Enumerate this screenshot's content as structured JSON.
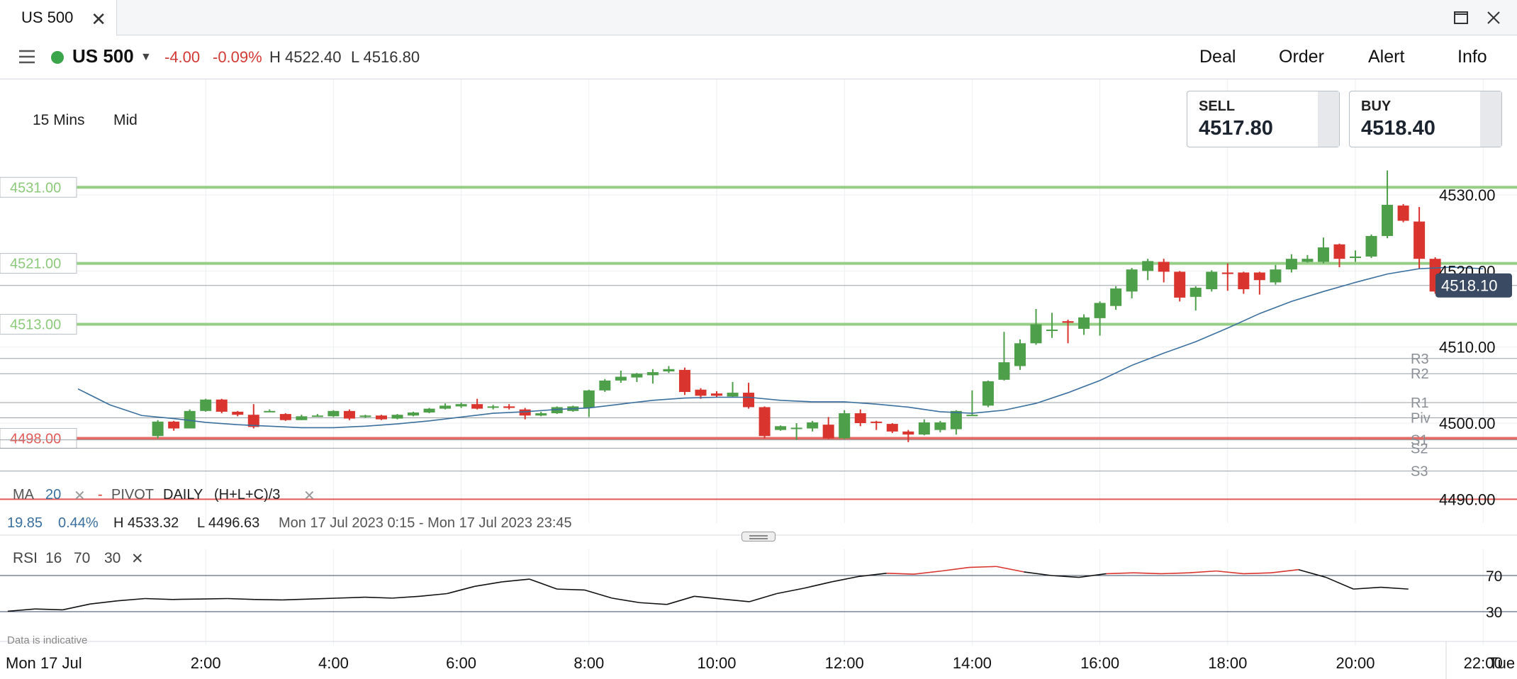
{
  "tab": {
    "title": "US 500"
  },
  "header": {
    "market": "US 500",
    "change": "-4.00",
    "change_pct": "-0.09%",
    "high": "H 4522.40",
    "low": "L 4516.80",
    "nav": [
      "Deal",
      "Order",
      "Alert",
      "Info"
    ]
  },
  "prices": {
    "sell_label": "SELL",
    "sell": "4517.80",
    "buy_label": "BUY",
    "buy": "4518.40"
  },
  "controls": {
    "timeframe": "15 Mins",
    "price_type": "Mid"
  },
  "indicators": {
    "ma_label": "MA",
    "ma_period": "20",
    "pivot_label": "PIVOT",
    "pivot_period": "DAILY",
    "pivot_formula": "(H+L+C)/3",
    "ma_value": "19.85",
    "ma_pct": "0.44%",
    "range_high": "H 4533.32",
    "range_low": "L 4496.63",
    "range": "Mon 17 Jul 2023 0:15 - Mon 17 Jul 2023 23:45",
    "rsi_label": "RSI",
    "rsi_period": "16",
    "rsi_upper": "70",
    "rsi_lower": "30"
  },
  "footer": {
    "note": "Data is indicative",
    "first_date": "Mon 17 Jul",
    "last_date": "Tue"
  },
  "colors": {
    "up": "#4e9f4a",
    "down": "#d9342d",
    "ma": "#3a6f9e",
    "level_green": "#8cc97a",
    "level_red": "#e05a55",
    "price_tag": "#3b4a63"
  },
  "chart_data": {
    "type": "candlestick",
    "ylim": [
      4487,
      4534
    ],
    "y_ticks": [
      "4530.00",
      "4520.00",
      "4510.00",
      "4500.00",
      "4490.00"
    ],
    "x_ticks": [
      "2:00",
      "4:00",
      "6:00",
      "8:00",
      "10:00",
      "12:00",
      "14:00",
      "16:00",
      "18:00",
      "20:00",
      "22:00"
    ],
    "current_price": "4518.10",
    "alert_levels": [
      {
        "label": "4531.00",
        "value": 4531,
        "color": "green"
      },
      {
        "label": "4521.00",
        "value": 4521,
        "color": "green"
      },
      {
        "label": "4513.00",
        "value": 4513,
        "color": "green"
      },
      {
        "label": "4498.00",
        "value": 4498,
        "color": "red"
      }
    ],
    "pivots": [
      {
        "name": "R3",
        "value": 4508.5
      },
      {
        "name": "R2",
        "value": 4506.5
      },
      {
        "name": "R1",
        "value": 4502.7
      },
      {
        "name": "Piv",
        "value": 4500.7
      },
      {
        "name": "S1",
        "value": 4497.8
      },
      {
        "name": "S2",
        "value": 4496.7
      },
      {
        "name": "S3",
        "value": 4493.7
      },
      {
        "name": "",
        "value": 4490
      }
    ],
    "candles": [
      [
        1.25,
        4498.3,
        4500.2,
        4498.0,
        4500.4
      ],
      [
        1.5,
        4500.2,
        4499.3,
        4499.0,
        4500.3
      ],
      [
        1.75,
        4499.3,
        4501.6,
        4499.3,
        4501.8
      ],
      [
        2.0,
        4501.6,
        4503.1,
        4501.5,
        4503.2
      ],
      [
        2.25,
        4503.1,
        4501.5,
        4501.3,
        4503.2
      ],
      [
        2.5,
        4501.5,
        4501.1,
        4500.9,
        4501.6
      ],
      [
        2.75,
        4501.1,
        4499.5,
        4499.3,
        4502.5
      ],
      [
        3.0,
        4501.6,
        4501.6,
        4501.6,
        4501.8
      ],
      [
        3.25,
        4501.2,
        4500.4,
        4500.3,
        4501.3
      ],
      [
        3.5,
        4500.4,
        4500.9,
        4500.4,
        4501.1
      ],
      [
        3.75,
        4501.0,
        4501.0,
        4500.9,
        4501.2
      ],
      [
        4.0,
        4500.9,
        4501.6,
        4500.8,
        4501.7
      ],
      [
        4.25,
        4501.6,
        4500.6,
        4500.4,
        4501.8
      ],
      [
        4.5,
        4500.8,
        4501.0,
        4500.7,
        4501.1
      ],
      [
        4.75,
        4501.0,
        4500.5,
        4500.4,
        4501.1
      ],
      [
        5.0,
        4500.6,
        4501.1,
        4500.5,
        4501.2
      ],
      [
        5.25,
        4501.0,
        4501.4,
        4500.9,
        4501.5
      ],
      [
        5.5,
        4501.4,
        4501.9,
        4501.3,
        4502.0
      ],
      [
        5.75,
        4501.9,
        4502.3,
        4501.8,
        4502.6
      ],
      [
        6.0,
        4502.2,
        4502.5,
        4502.0,
        4502.7
      ],
      [
        6.25,
        4502.5,
        4501.9,
        4501.8,
        4503.2
      ],
      [
        6.5,
        4502.1,
        4502.2,
        4501.8,
        4502.4
      ],
      [
        6.75,
        4502.2,
        4502.0,
        4501.8,
        4502.5
      ],
      [
        7.0,
        4501.8,
        4501.0,
        4500.5,
        4502.0
      ],
      [
        7.25,
        4501.0,
        4501.3,
        4500.9,
        4501.5
      ],
      [
        7.5,
        4501.3,
        4502.1,
        4501.2,
        4502.2
      ],
      [
        7.75,
        4501.6,
        4502.2,
        4501.5,
        4502.3
      ],
      [
        8.0,
        4502.0,
        4504.3,
        4500.8,
        4504.4
      ],
      [
        8.25,
        4504.3,
        4505.6,
        4504.1,
        4505.8
      ],
      [
        8.5,
        4505.6,
        4506.1,
        4505.3,
        4506.9
      ],
      [
        8.75,
        4506.0,
        4506.5,
        4505.4,
        4506.6
      ],
      [
        9.0,
        4506.3,
        4506.7,
        4505.2,
        4507.1
      ],
      [
        9.25,
        4506.8,
        4507.1,
        4506.6,
        4507.5
      ],
      [
        9.5,
        4507.0,
        4504.1,
        4503.7,
        4507.3
      ],
      [
        9.75,
        4504.4,
        4503.6,
        4503.2,
        4504.6
      ],
      [
        10.0,
        4503.9,
        4503.6,
        4503.4,
        4504.2
      ],
      [
        10.25,
        4503.5,
        4504.0,
        4503.4,
        4505.4
      ],
      [
        10.5,
        4504.0,
        4502.1,
        4501.9,
        4505.3
      ],
      [
        10.75,
        4502.1,
        4498.3,
        4498.0,
        4502.2
      ],
      [
        11.0,
        4499.1,
        4499.6,
        4499.0,
        4499.7
      ],
      [
        11.25,
        4499.3,
        4499.4,
        4497.8,
        4500.0
      ],
      [
        11.5,
        4499.3,
        4500.1,
        4498.9,
        4500.3
      ],
      [
        11.75,
        4499.8,
        4498.0,
        4497.9,
        4500.8
      ],
      [
        12.0,
        4498.0,
        4501.3,
        4497.9,
        4501.7
      ],
      [
        12.25,
        4501.3,
        4500.0,
        4499.6,
        4501.8
      ],
      [
        12.5,
        4500.2,
        4500.1,
        4499.1,
        4500.3
      ],
      [
        12.75,
        4499.9,
        4498.9,
        4498.7,
        4500.0
      ],
      [
        13.0,
        4498.9,
        4498.5,
        4497.5,
        4499.1
      ],
      [
        13.25,
        4498.5,
        4500.1,
        4498.4,
        4500.5
      ],
      [
        13.5,
        4499.1,
        4500.1,
        4498.8,
        4500.3
      ],
      [
        13.75,
        4499.2,
        4501.6,
        4498.5,
        4501.7
      ],
      [
        14.0,
        4501.1,
        4501.1,
        4501.0,
        4504.3
      ],
      [
        14.25,
        4502.3,
        4505.5,
        4502.1,
        4505.6
      ],
      [
        14.5,
        4505.7,
        4508.0,
        4505.6,
        4512.0
      ],
      [
        14.75,
        4507.5,
        4510.5,
        4507.0,
        4511.0
      ],
      [
        15.0,
        4510.5,
        4513.0,
        4510.3,
        4515.0
      ],
      [
        15.25,
        4512.2,
        4512.3,
        4511.2,
        4514.5
      ],
      [
        15.5,
        4513.4,
        4513.2,
        4510.5,
        4513.6
      ],
      [
        15.75,
        4512.4,
        4513.9,
        4511.6,
        4514.3
      ],
      [
        16.0,
        4513.8,
        4515.8,
        4511.5,
        4516.0
      ],
      [
        16.25,
        4515.4,
        4517.7,
        4514.9,
        4518.0
      ],
      [
        16.5,
        4517.3,
        4520.2,
        4516.4,
        4520.4
      ],
      [
        16.75,
        4520.0,
        4521.3,
        4518.8,
        4521.6
      ],
      [
        17.0,
        4521.2,
        4519.9,
        4518.5,
        4521.6
      ],
      [
        17.25,
        4519.9,
        4516.5,
        4516.0,
        4520.0
      ],
      [
        17.5,
        4516.6,
        4517.8,
        4514.8,
        4518.0
      ],
      [
        17.75,
        4517.6,
        4519.9,
        4517.3,
        4520.1
      ],
      [
        18.0,
        4519.8,
        4519.6,
        4517.4,
        4521.0
      ],
      [
        18.25,
        4519.8,
        4517.6,
        4517.0,
        4519.9
      ],
      [
        18.5,
        4519.8,
        4518.8,
        4516.9,
        4519.9
      ],
      [
        18.75,
        4518.5,
        4520.2,
        4518.2,
        4520.8
      ],
      [
        19.0,
        4520.2,
        4521.6,
        4519.8,
        4522.2
      ],
      [
        19.25,
        4521.2,
        4521.6,
        4521.1,
        4522.1
      ],
      [
        19.5,
        4521.2,
        4523.1,
        4521.0,
        4524.4
      ],
      [
        19.75,
        4523.5,
        4521.6,
        4520.5,
        4523.6
      ],
      [
        20.0,
        4521.7,
        4521.9,
        4521.2,
        4522.7
      ],
      [
        20.25,
        4521.9,
        4524.6,
        4521.7,
        4524.8
      ],
      [
        20.5,
        4524.6,
        4528.7,
        4524.3,
        4533.2
      ],
      [
        20.75,
        4528.6,
        4526.6,
        4526.4,
        4528.8
      ],
      [
        21.0,
        4526.5,
        4521.6,
        4520.3,
        4528.4
      ],
      [
        21.25,
        4521.6,
        4517.3,
        4517.0,
        4521.8
      ],
      [
        21.5,
        4517.3,
        4519.2,
        4517.1,
        4519.3
      ],
      [
        21.75,
        4518.6,
        4518.6,
        4518.3,
        4518.8
      ],
      [
        22.0,
        4518.7,
        4518.3,
        4518.2,
        4518.4
      ]
    ],
    "ma_series": [
      [
        0.0,
        4504.5
      ],
      [
        0.5,
        4502.4
      ],
      [
        1.0,
        4501.0
      ],
      [
        1.5,
        4500.6
      ],
      [
        2.0,
        4500.1
      ],
      [
        2.5,
        4499.8
      ],
      [
        3.0,
        4499.6
      ],
      [
        3.5,
        4499.4
      ],
      [
        4.0,
        4499.4
      ],
      [
        4.5,
        4499.6
      ],
      [
        5.0,
        4499.9
      ],
      [
        5.5,
        4500.3
      ],
      [
        6.0,
        4500.8
      ],
      [
        6.5,
        4501.3
      ],
      [
        7.0,
        4501.5
      ],
      [
        7.5,
        4501.8
      ],
      [
        8.0,
        4502.0
      ],
      [
        8.5,
        4502.5
      ],
      [
        9.0,
        4503.0
      ],
      [
        9.5,
        4503.3
      ],
      [
        10.0,
        4503.4
      ],
      [
        10.5,
        4503.4
      ],
      [
        11.0,
        4503.0
      ],
      [
        11.5,
        4502.8
      ],
      [
        12.0,
        4502.8
      ],
      [
        12.5,
        4502.5
      ],
      [
        13.0,
        4502.1
      ],
      [
        13.5,
        4501.5
      ],
      [
        14.0,
        4501.3
      ],
      [
        14.5,
        4501.7
      ],
      [
        15.0,
        4502.6
      ],
      [
        15.5,
        4504.0
      ],
      [
        16.0,
        4505.6
      ],
      [
        16.5,
        4507.6
      ],
      [
        17.0,
        4509.2
      ],
      [
        17.5,
        4510.7
      ],
      [
        18.0,
        4512.5
      ],
      [
        18.5,
        4514.4
      ],
      [
        19.0,
        4516.0
      ],
      [
        19.5,
        4517.3
      ],
      [
        20.0,
        4518.5
      ],
      [
        20.5,
        4519.6
      ],
      [
        21.0,
        4520.3
      ],
      [
        21.5,
        4520.5
      ],
      [
        22.0,
        4520.3
      ]
    ],
    "rsi_series": [
      [
        0.0,
        30.5
      ],
      [
        0.5,
        33.0
      ],
      [
        1.0,
        32.0
      ],
      [
        1.5,
        38.5
      ],
      [
        2.0,
        42.0
      ],
      [
        2.5,
        44.5
      ],
      [
        3.0,
        43.5
      ],
      [
        3.5,
        44.0
      ],
      [
        4.0,
        44.5
      ],
      [
        4.5,
        43.5
      ],
      [
        5.0,
        43.0
      ],
      [
        5.5,
        44.0
      ],
      [
        6.0,
        45.0
      ],
      [
        6.5,
        46.0
      ],
      [
        7.0,
        45.0
      ],
      [
        7.5,
        47.0
      ],
      [
        8.0,
        50.0
      ],
      [
        8.5,
        58.0
      ],
      [
        9.0,
        63.0
      ],
      [
        9.5,
        66.0
      ],
      [
        10.0,
        55.0
      ],
      [
        10.5,
        54.0
      ],
      [
        11.0,
        45.0
      ],
      [
        11.5,
        40.0
      ],
      [
        12.0,
        38.0
      ],
      [
        12.5,
        47.0
      ],
      [
        13.0,
        44.0
      ],
      [
        13.5,
        41.0
      ],
      [
        14.0,
        50.0
      ],
      [
        14.5,
        56.0
      ],
      [
        15.0,
        63.0
      ],
      [
        15.5,
        69.0
      ],
      [
        16.0,
        72.5
      ],
      [
        16.5,
        71.5
      ],
      [
        17.0,
        75.0
      ],
      [
        17.5,
        79.0
      ],
      [
        18.0,
        80.0
      ],
      [
        18.5,
        74.0
      ],
      [
        19.0,
        70.0
      ],
      [
        19.5,
        68.0
      ],
      [
        20.0,
        72.0
      ],
      [
        20.5,
        73.0
      ],
      [
        21.0,
        72.0
      ],
      [
        21.5,
        73.0
      ],
      [
        22.0,
        75.0
      ],
      [
        22.5,
        72.0
      ],
      [
        23.0,
        73.0
      ],
      [
        23.5,
        76.5
      ],
      [
        24.0,
        68.0
      ],
      [
        24.5,
        55.0
      ],
      [
        25.0,
        57.0
      ],
      [
        25.5,
        55.0
      ]
    ]
  }
}
